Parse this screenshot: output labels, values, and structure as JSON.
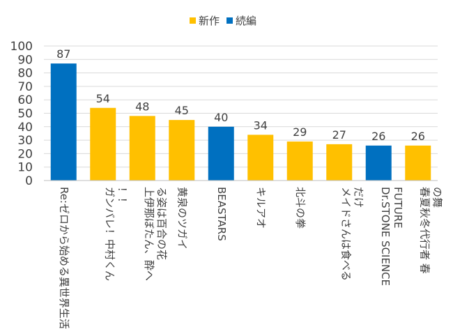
{
  "chart_data": {
    "type": "bar",
    "categories": [
      "Re:ゼロから始める異世界生活",
      "ガンバレ！中村くん！！",
      "上伊那ぼたん、酔へる姿は百合の花",
      "黄泉のツガイ",
      "BEASTARS",
      "キルアオ",
      "北斗の拳",
      "メイドさんは食べるだけ",
      "Dr.STONE SCIENCE FUTURE",
      "春夏秋冬代行者 春の舞"
    ],
    "values": [
      87,
      54,
      48,
      45,
      40,
      34,
      29,
      27,
      26,
      26
    ],
    "kinds": [
      "続編",
      "新作",
      "新作",
      "新作",
      "続編",
      "新作",
      "新作",
      "新作",
      "続編",
      "新作"
    ],
    "legend": [
      {
        "name": "新作",
        "color": "#FFC000"
      },
      {
        "name": "続編",
        "color": "#0070C0"
      }
    ],
    "ylim": [
      0,
      100
    ],
    "yticks": [
      0,
      10,
      20,
      30,
      40,
      50,
      60,
      70,
      80,
      90,
      100
    ],
    "grid": true,
    "legend_position": "top-center"
  }
}
